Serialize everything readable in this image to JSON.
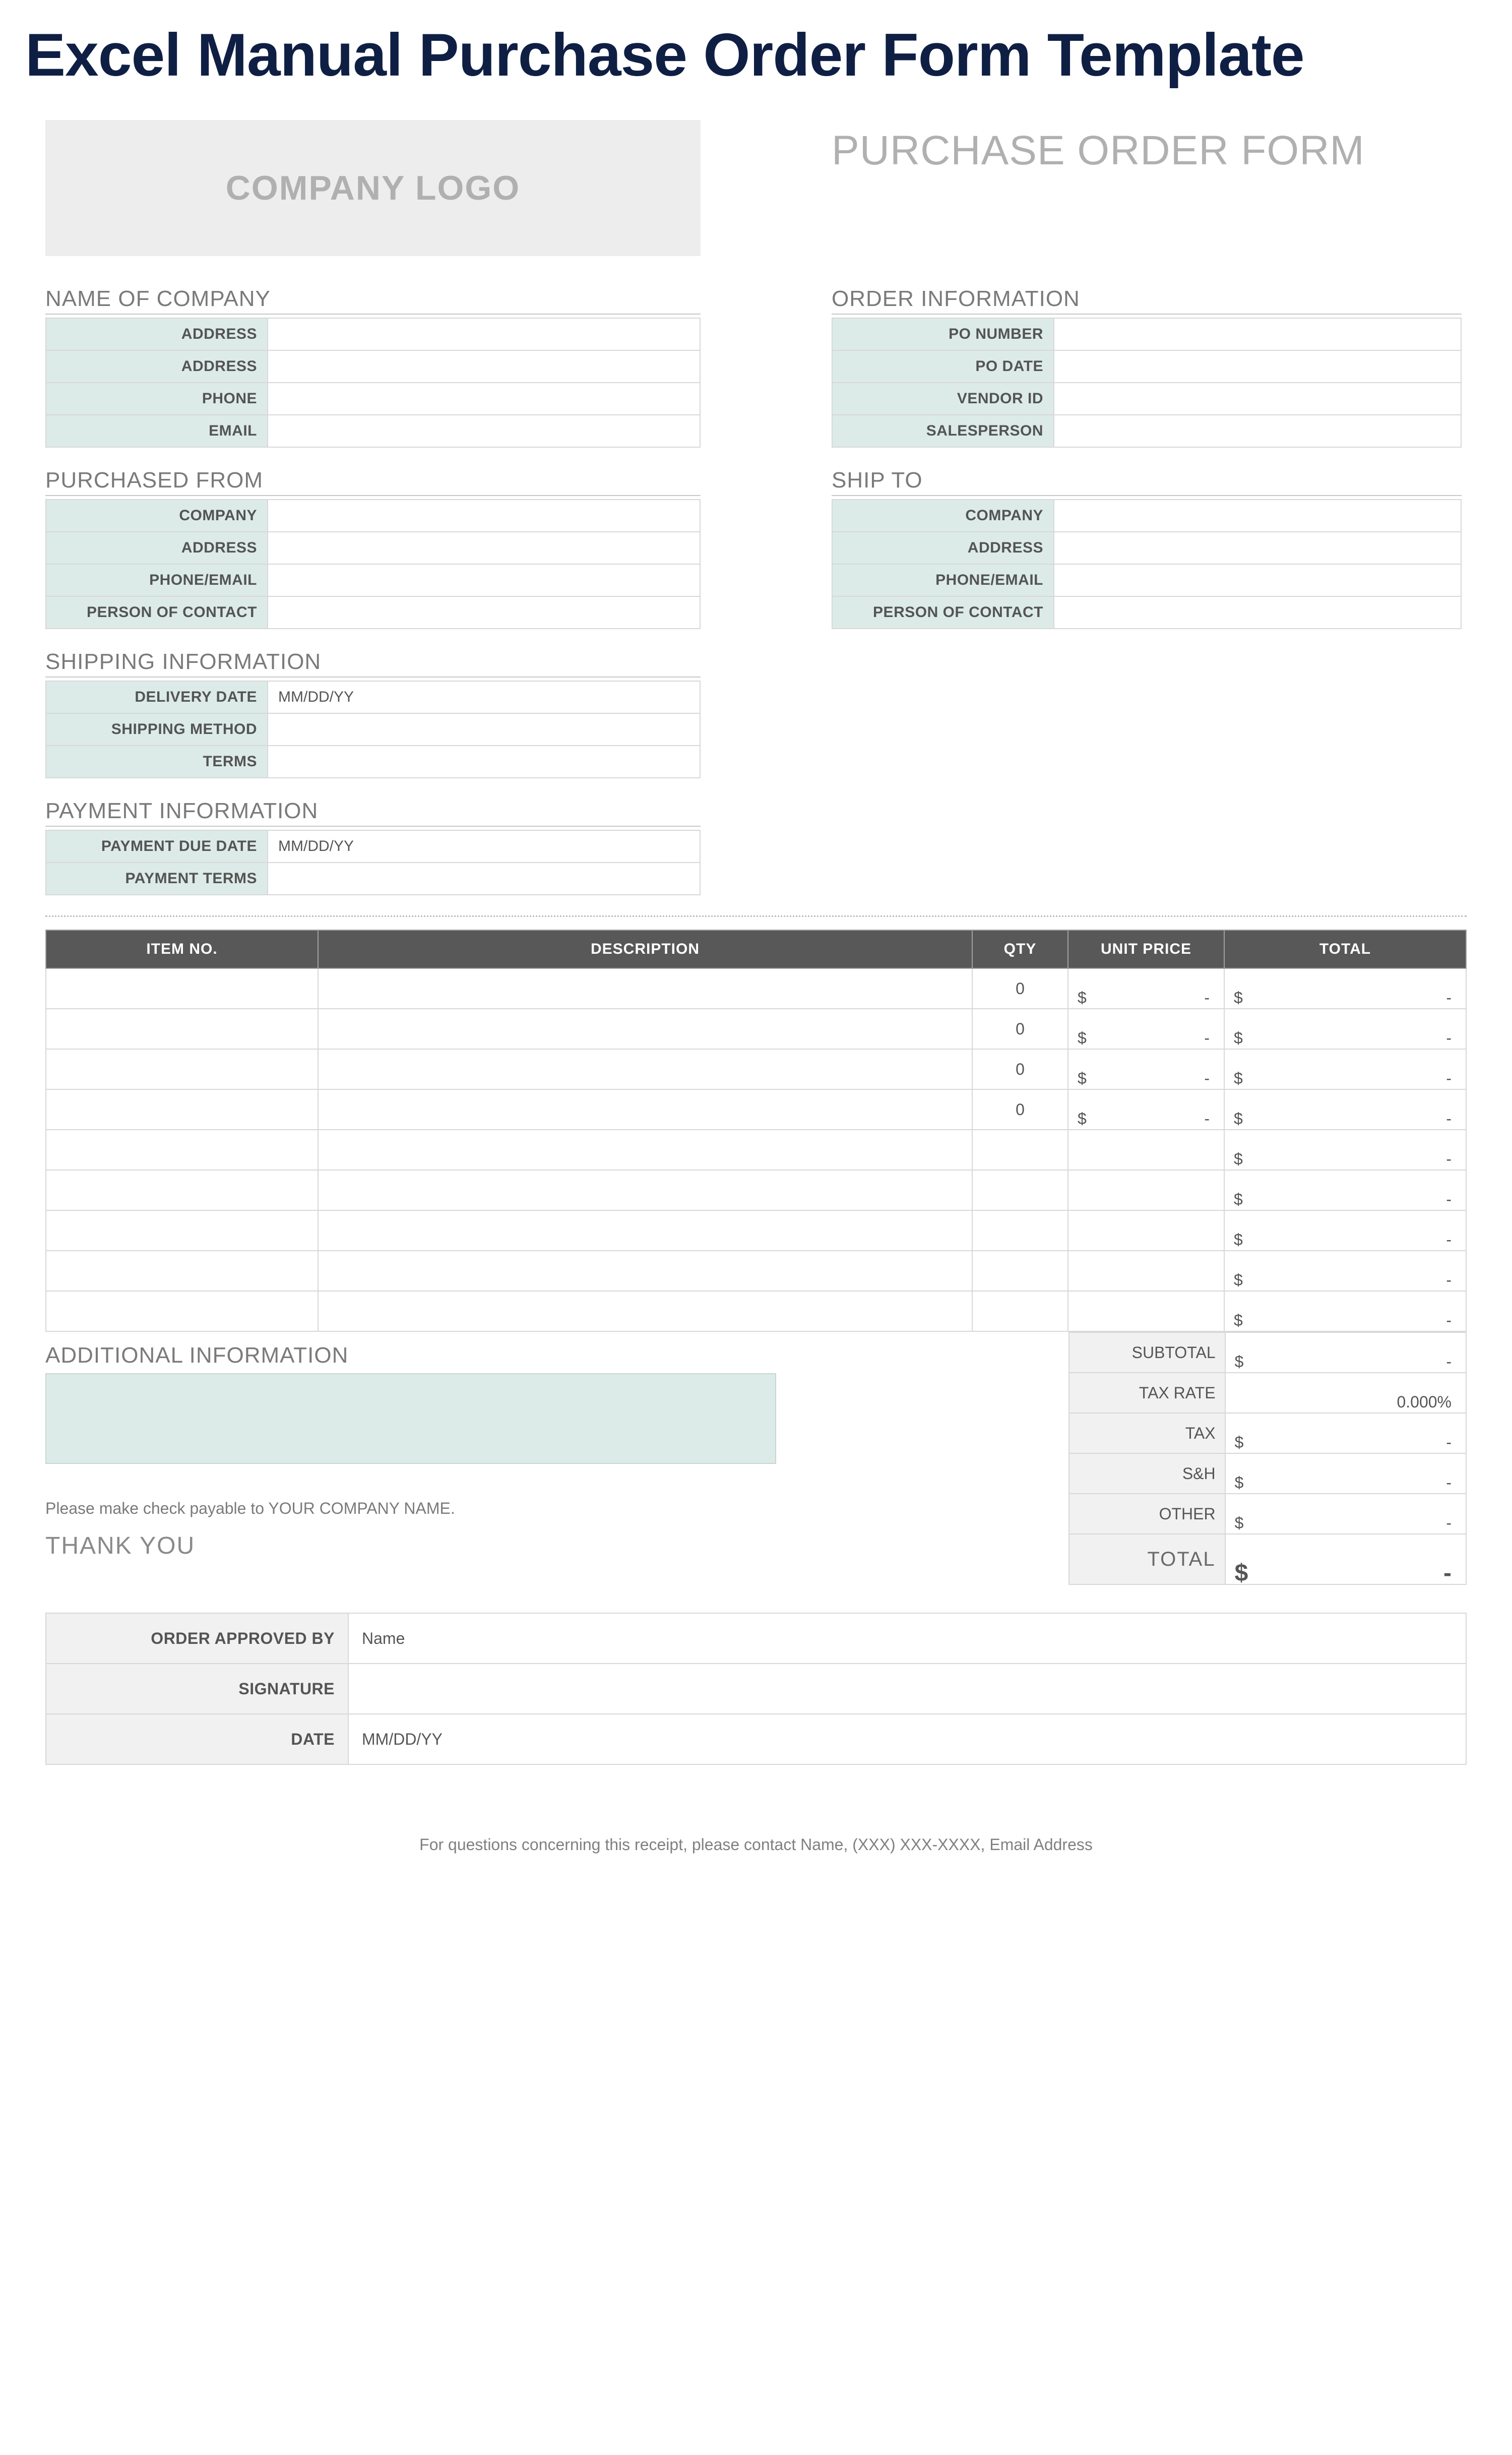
{
  "title": "Excel Manual Purchase Order Form Template",
  "logo_text": "COMPANY LOGO",
  "po_form_title": "PURCHASE ORDER FORM",
  "company": {
    "heading": "NAME OF COMPANY",
    "rows": [
      {
        "label": "ADDRESS",
        "value": ""
      },
      {
        "label": "ADDRESS",
        "value": ""
      },
      {
        "label": "PHONE",
        "value": ""
      },
      {
        "label": "EMAIL",
        "value": ""
      }
    ]
  },
  "order_info": {
    "heading": "ORDER INFORMATION",
    "rows": [
      {
        "label": "PO NUMBER",
        "value": ""
      },
      {
        "label": "PO DATE",
        "value": ""
      },
      {
        "label": "VENDOR ID",
        "value": ""
      },
      {
        "label": "SALESPERSON",
        "value": ""
      }
    ]
  },
  "purchased_from": {
    "heading": "PURCHASED FROM",
    "rows": [
      {
        "label": "COMPANY",
        "value": ""
      },
      {
        "label": "ADDRESS",
        "value": ""
      },
      {
        "label": "PHONE/EMAIL",
        "value": ""
      },
      {
        "label": "PERSON OF CONTACT",
        "value": ""
      }
    ]
  },
  "ship_to": {
    "heading": "SHIP TO",
    "rows": [
      {
        "label": "COMPANY",
        "value": ""
      },
      {
        "label": "ADDRESS",
        "value": ""
      },
      {
        "label": "PHONE/EMAIL",
        "value": ""
      },
      {
        "label": "PERSON OF CONTACT",
        "value": ""
      }
    ]
  },
  "shipping": {
    "heading": "SHIPPING INFORMATION",
    "rows": [
      {
        "label": "DELIVERY DATE",
        "value": "MM/DD/YY"
      },
      {
        "label": "SHIPPING METHOD",
        "value": ""
      },
      {
        "label": "TERMS",
        "value": ""
      }
    ]
  },
  "payment": {
    "heading": "PAYMENT INFORMATION",
    "rows": [
      {
        "label": "PAYMENT DUE DATE",
        "value": "MM/DD/YY"
      },
      {
        "label": "PAYMENT TERMS",
        "value": ""
      }
    ]
  },
  "items": {
    "headers": {
      "itemno": "ITEM NO.",
      "desc": "DESCRIPTION",
      "qty": "QTY",
      "unit": "UNIT PRICE",
      "total": "TOTAL"
    },
    "rows": [
      {
        "itemno": "",
        "desc": "",
        "qty": "0",
        "unit_cur": "$",
        "unit_dash": "-",
        "total_cur": "$",
        "total_dash": "-"
      },
      {
        "itemno": "",
        "desc": "",
        "qty": "0",
        "unit_cur": "$",
        "unit_dash": "-",
        "total_cur": "$",
        "total_dash": "-"
      },
      {
        "itemno": "",
        "desc": "",
        "qty": "0",
        "unit_cur": "$",
        "unit_dash": "-",
        "total_cur": "$",
        "total_dash": "-"
      },
      {
        "itemno": "",
        "desc": "",
        "qty": "0",
        "unit_cur": "$",
        "unit_dash": "-",
        "total_cur": "$",
        "total_dash": "-"
      },
      {
        "itemno": "",
        "desc": "",
        "qty": "",
        "unit_cur": "",
        "unit_dash": "",
        "total_cur": "$",
        "total_dash": "-"
      },
      {
        "itemno": "",
        "desc": "",
        "qty": "",
        "unit_cur": "",
        "unit_dash": "",
        "total_cur": "$",
        "total_dash": "-"
      },
      {
        "itemno": "",
        "desc": "",
        "qty": "",
        "unit_cur": "",
        "unit_dash": "",
        "total_cur": "$",
        "total_dash": "-"
      },
      {
        "itemno": "",
        "desc": "",
        "qty": "",
        "unit_cur": "",
        "unit_dash": "",
        "total_cur": "$",
        "total_dash": "-"
      },
      {
        "itemno": "",
        "desc": "",
        "qty": "",
        "unit_cur": "",
        "unit_dash": "",
        "total_cur": "$",
        "total_dash": "-"
      }
    ]
  },
  "additional": {
    "heading": "ADDITIONAL INFORMATION",
    "check_note": "Please make check payable to YOUR COMPANY NAME.",
    "thanks": "THANK YOU"
  },
  "totals": {
    "rows": [
      {
        "label": "SUBTOTAL",
        "cur": "$",
        "dash": "-"
      },
      {
        "label": "TAX RATE",
        "cur": "",
        "dash": "0.000%"
      },
      {
        "label": "TAX",
        "cur": "$",
        "dash": "-"
      },
      {
        "label": "S&H",
        "cur": "$",
        "dash": "-"
      },
      {
        "label": "OTHER",
        "cur": "$",
        "dash": "-"
      }
    ],
    "total": {
      "label": "TOTAL",
      "cur": "$",
      "dash": "-"
    }
  },
  "approval": {
    "rows": [
      {
        "label": "ORDER APPROVED BY",
        "value": "Name"
      },
      {
        "label": "SIGNATURE",
        "value": ""
      },
      {
        "label": "DATE",
        "value": "MM/DD/YY"
      }
    ]
  },
  "footer": "For questions concerning this receipt, please contact Name, (XXX) XXX-XXXX, Email Address",
  "colors": {
    "title": "#0f1f44",
    "mint": "#dcebe7",
    "header_bg": "#585858",
    "border": "#d8d8d8",
    "muted": "#7a7a7a"
  }
}
